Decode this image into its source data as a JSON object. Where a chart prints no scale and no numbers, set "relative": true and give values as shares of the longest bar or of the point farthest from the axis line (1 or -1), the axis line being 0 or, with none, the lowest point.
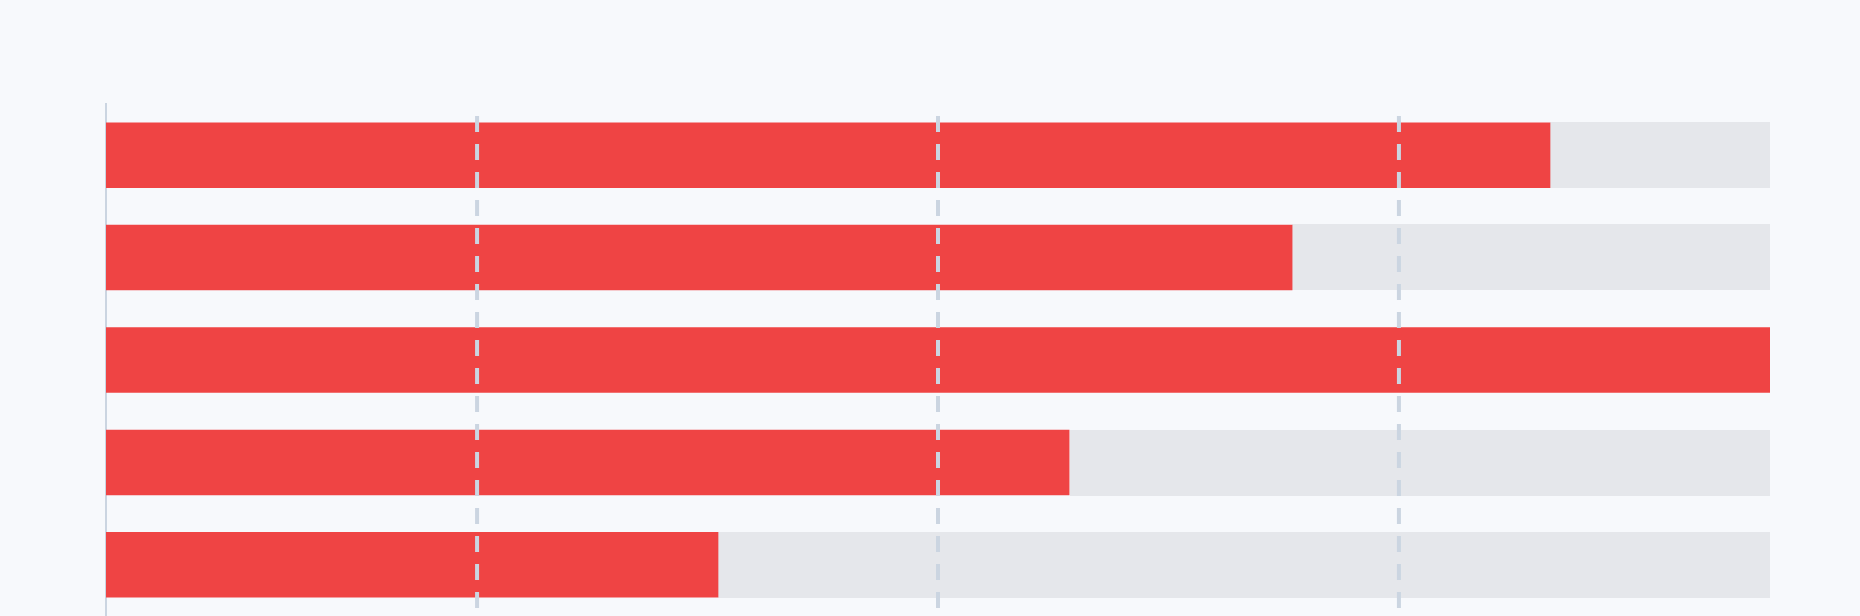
{
  "chart_data": {
    "type": "bar",
    "orientation": "horizontal",
    "relative": true,
    "categories": [
      null,
      null,
      null,
      null,
      null
    ],
    "values": [
      0.868,
      0.713,
      1,
      0.579,
      0.368
    ],
    "color": "#ef4444",
    "ref_lines": [
      {
        "axis": "x",
        "value": 0.223,
        "color": "#cbd5e1",
        "line_style": "dashed"
      },
      {
        "axis": "x",
        "value": 0.5,
        "color": "#cbd5e1",
        "line_style": "dashed"
      },
      {
        "axis": "x",
        "value": 0.777,
        "color": "#cbd5e1",
        "line_style": "dashed"
      }
    ]
  }
}
